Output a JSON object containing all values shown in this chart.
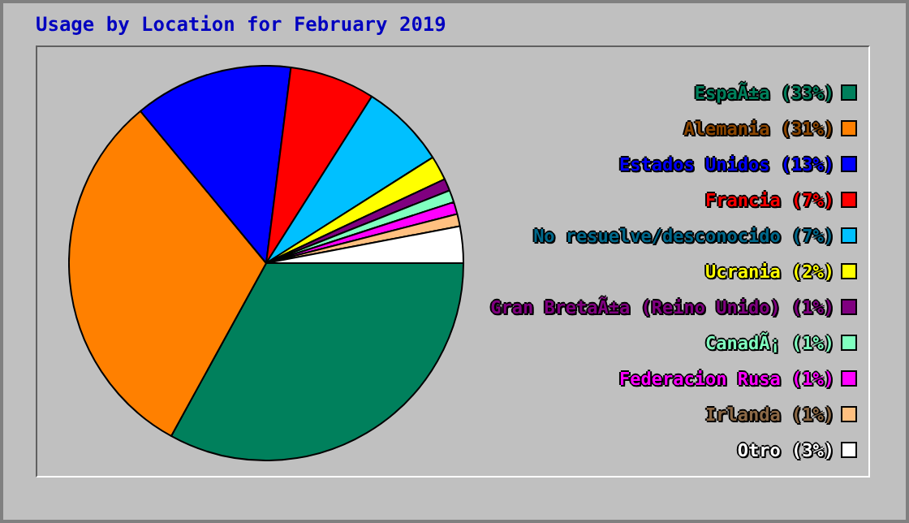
{
  "chart_data": {
    "type": "pie",
    "title": "Usage by Location for February 2019",
    "categories": [
      "EspaÃ±a (33%)",
      "Alemania (31%)",
      "Estados Unidos (13%)",
      "Francia (7%)",
      "No resuelve/desconocido (7%)",
      "Ucrania (2%)",
      "Gran BretaÃ±a (Reino Unido) (1%)",
      "CanadÃ¡ (1%)",
      "Federacion Rusa (1%)",
      "Irlanda (1%)",
      "Otro (3%)"
    ],
    "values": [
      33,
      31,
      13,
      7,
      7,
      2,
      1,
      1,
      1,
      1,
      3
    ],
    "colors": [
      "#00805c",
      "#ff8000",
      "#0000ff",
      "#ff0000",
      "#00c0ff",
      "#ffff00",
      "#800080",
      "#80ffc0",
      "#ff00ff",
      "#ffc080",
      "#ffffff"
    ],
    "legend": "right"
  }
}
